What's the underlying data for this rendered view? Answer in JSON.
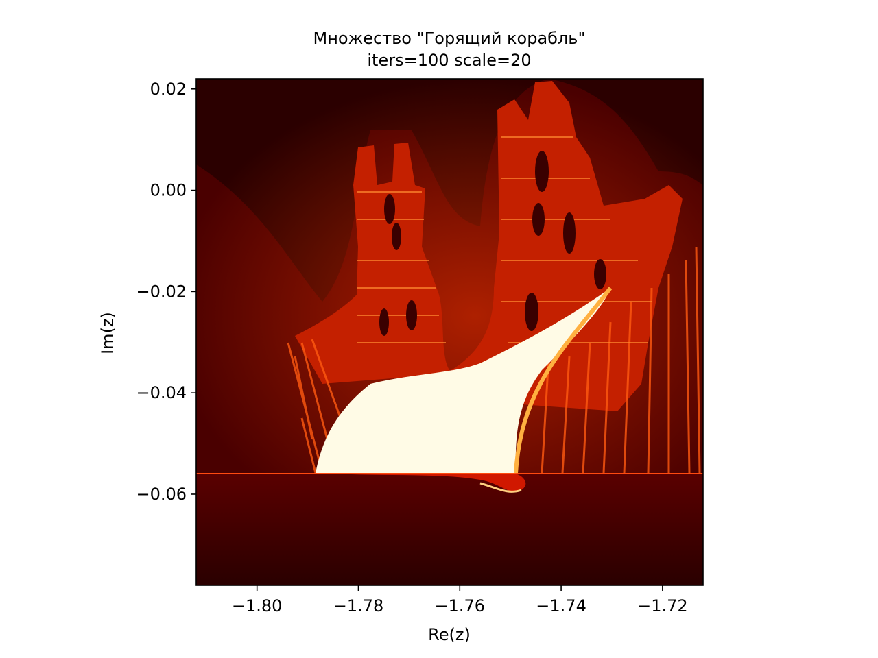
{
  "chart_data": {
    "type": "heatmap",
    "title": "Множество \"Горящий корабль\"",
    "subtitle": "iters=100 scale=20",
    "xlabel": "Re(z)",
    "ylabel": "Im(z)",
    "xlim": [
      -1.812,
      -1.712
    ],
    "ylim": [
      -0.078,
      0.022
    ],
    "x_ticks": [
      -1.8,
      -1.78,
      -1.76,
      -1.74,
      -1.72
    ],
    "x_tick_labels": [
      "−1.80",
      "−1.78",
      "−1.76",
      "−1.74",
      "−1.72"
    ],
    "y_ticks": [
      0.02,
      0.0,
      -0.02,
      -0.04,
      -0.06
    ],
    "y_tick_labels": [
      "0.02",
      "0.00",
      "−0.02",
      "−0.04",
      "−0.06"
    ],
    "colormap": "hot",
    "colors": {
      "background": "#2b0000",
      "outer": "#4a0000",
      "mid": "#c42000",
      "bright": "#ff6a10",
      "core": "#fffbe6"
    },
    "grid": false,
    "legend": "none"
  }
}
